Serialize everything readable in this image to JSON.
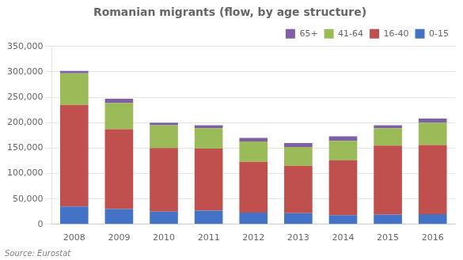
{
  "chart_data": {
    "type": "bar",
    "title": "Romanian migrants (flow, by age structure)",
    "annotations": [
      "Source: Eurostat"
    ],
    "categories": [
      "2008",
      "2009",
      "2010",
      "2011",
      "2012",
      "2013",
      "2014",
      "2015",
      "2016"
    ],
    "series": [
      {
        "name": "0-15",
        "color": "#4472C4",
        "values": [
          35000,
          30000,
          25000,
          27000,
          23000,
          22000,
          18000,
          19000,
          20000
        ]
      },
      {
        "name": "16-40",
        "color": "#C0504D",
        "values": [
          200000,
          157000,
          125000,
          122000,
          100000,
          93000,
          108000,
          136000,
          136000
        ]
      },
      {
        "name": "41-64",
        "color": "#9BBB59",
        "values": [
          62000,
          52000,
          45000,
          40000,
          40000,
          37000,
          38000,
          34000,
          44000
        ]
      },
      {
        "name": "65+",
        "color": "#7F5FA6",
        "values": [
          5000,
          8000,
          5000,
          6000,
          7000,
          8000,
          9000,
          6000,
          8000
        ]
      }
    ],
    "stacked": true,
    "ylim": [
      0,
      350000
    ],
    "yticks": [
      0,
      {
        "value": 50000,
        "label": "50,000"
      },
      {
        "value": 100000,
        "label": "100,000"
      },
      {
        "value": 150000,
        "label": "150,000"
      },
      {
        "value": 200000,
        "label": "200,000"
      },
      {
        "value": 250000,
        "label": "250,000"
      },
      {
        "value": 300000,
        "label": "300,000"
      },
      {
        "value": 350000,
        "label": "350,000"
      }
    ],
    "grid": true,
    "legend": "upper right"
  }
}
